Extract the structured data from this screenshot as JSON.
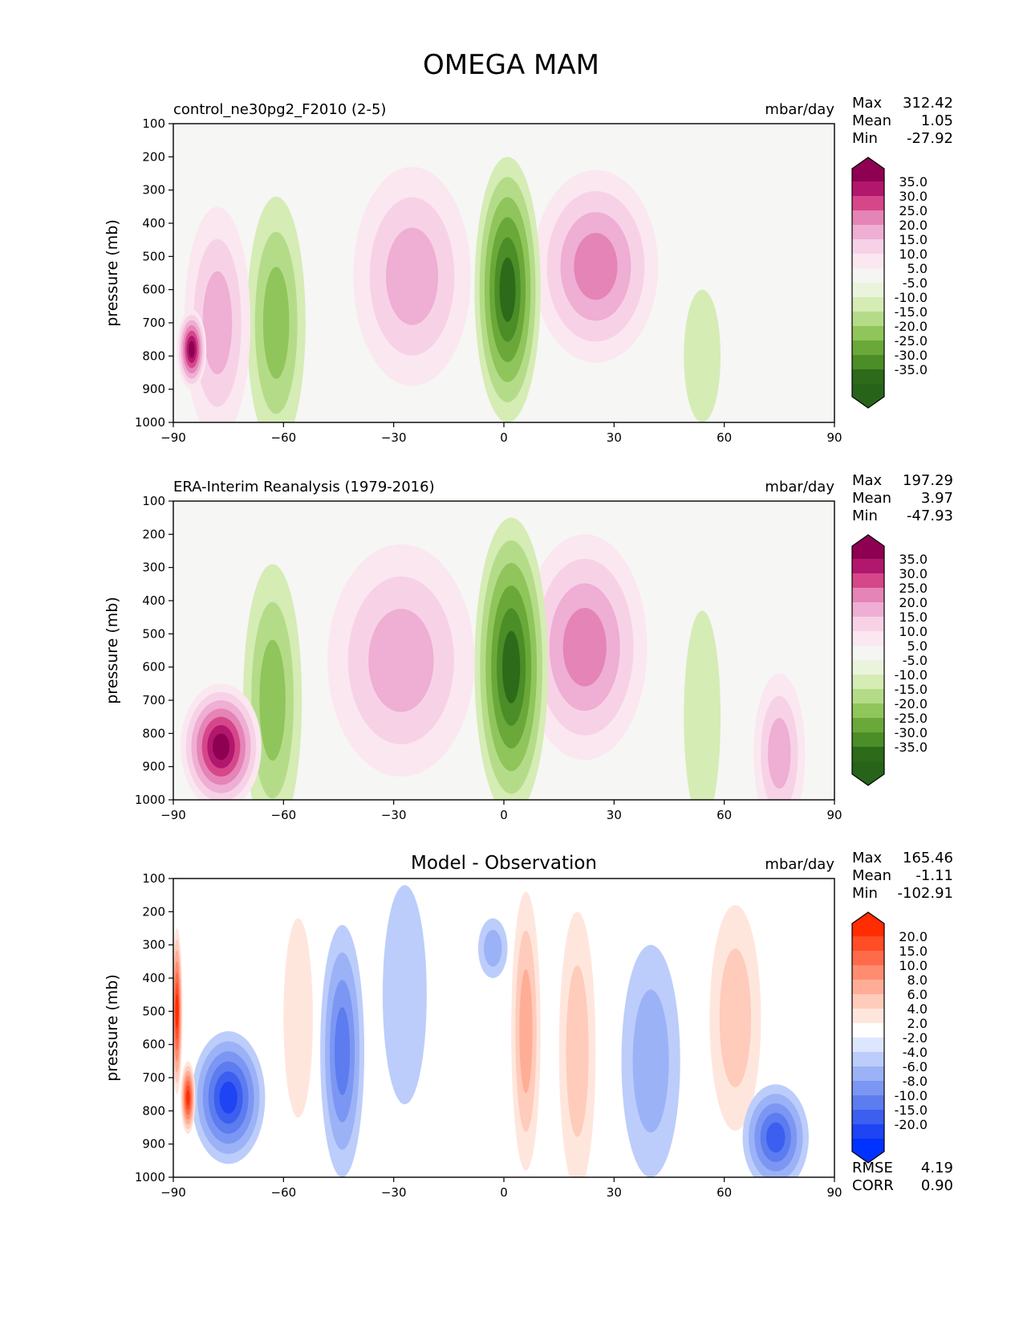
{
  "figure": {
    "title": "OMEGA MAM"
  },
  "chart_data": [
    {
      "type": "heatmap",
      "title": "control_ne30pg2_F2010 (2-5)",
      "units": "mbar/day",
      "ylabel": "pressure (mb)",
      "xlabel": "",
      "xlim": [
        -90,
        90
      ],
      "ylim": [
        1000,
        100
      ],
      "xticks": [
        "−90",
        "−60",
        "−30",
        "0",
        "30",
        "60",
        "90"
      ],
      "yticks": [
        "100",
        "200",
        "300",
        "400",
        "500",
        "600",
        "700",
        "800",
        "900",
        "1000"
      ],
      "stats": [
        {
          "label": "Max",
          "value": "312.42"
        },
        {
          "label": "Mean",
          "value": "1.05"
        },
        {
          "label": "Min",
          "value": "-27.92"
        }
      ],
      "colorbar": {
        "labels": [
          "35.0",
          "30.0",
          "25.0",
          "20.0",
          "15.0",
          "10.0",
          "5.0",
          "-5.0",
          "-10.0",
          "-15.0",
          "-20.0",
          "-25.0",
          "-30.0",
          "-35.0"
        ],
        "colors": [
          "#8e0152",
          "#b2176e",
          "#d6478a",
          "#e584b6",
          "#efaed3",
          "#f7d2e7",
          "#fbe7f0",
          "#f5f5f3",
          "#eaf4dc",
          "#d5ecb5",
          "#b4dc88",
          "#8fc55b",
          "#6ba83a",
          "#4b8d26",
          "#2d6a19",
          "#276419"
        ]
      },
      "features": [
        {
          "kind": "blob",
          "lat": 25,
          "p": 530,
          "hw": 17,
          "top": 250,
          "bot": 820,
          "level": 4
        },
        {
          "kind": "blob",
          "lat": 1,
          "p": 600,
          "hw": 9,
          "top": 200,
          "bot": 870,
          "level": -6
        },
        {
          "kind": "blob",
          "lat": -25,
          "p": 560,
          "hw": 16,
          "top": 230,
          "bot": 860,
          "level": 3
        },
        {
          "kind": "blob",
          "lat": -62,
          "p": 700,
          "hw": 8,
          "top": 320,
          "bot": 990,
          "level": -3
        },
        {
          "kind": "blob",
          "lat": -78,
          "p": 700,
          "hw": 9,
          "top": 350,
          "bot": 860,
          "level": 3
        },
        {
          "kind": "blob",
          "lat": -85,
          "p": 780,
          "hw": 4,
          "top": 660,
          "bot": 870,
          "level": 7
        },
        {
          "kind": "blob",
          "lat": 54,
          "p": 800,
          "hw": 5,
          "top": 620,
          "bot": 1000,
          "level": -1
        }
      ]
    },
    {
      "type": "heatmap",
      "title": "ERA-Interim Reanalysis (1979-2016)",
      "units": "mbar/day",
      "ylabel": "pressure (mb)",
      "xlabel": "",
      "xlim": [
        -90,
        90
      ],
      "ylim": [
        1000,
        100
      ],
      "xticks": [
        "−90",
        "−60",
        "−30",
        "0",
        "30",
        "60",
        "90"
      ],
      "yticks": [
        "100",
        "200",
        "300",
        "400",
        "500",
        "600",
        "700",
        "800",
        "900",
        "1000"
      ],
      "stats": [
        {
          "label": "Max",
          "value": "197.29"
        },
        {
          "label": "Mean",
          "value": "3.97"
        },
        {
          "label": "Min",
          "value": "-47.93"
        }
      ],
      "colorbar": {
        "labels": [
          "35.0",
          "30.0",
          "25.0",
          "20.0",
          "15.0",
          "10.0",
          "5.0",
          "-5.0",
          "-10.0",
          "-15.0",
          "-20.0",
          "-25.0",
          "-30.0",
          "-35.0"
        ],
        "colors": [
          "#8e0152",
          "#b2176e",
          "#d6478a",
          "#e584b6",
          "#efaed3",
          "#f7d2e7",
          "#fbe7f0",
          "#f5f5f3",
          "#eaf4dc",
          "#d5ecb5",
          "#b4dc88",
          "#8fc55b",
          "#6ba83a",
          "#4b8d26",
          "#2d6a19",
          "#276419"
        ]
      },
      "features": [
        {
          "kind": "blob",
          "lat": 22,
          "p": 540,
          "hw": 17,
          "top": 240,
          "bot": 880,
          "level": 4
        },
        {
          "kind": "blob",
          "lat": 2,
          "p": 600,
          "hw": 10,
          "top": 150,
          "bot": 920,
          "level": -6
        },
        {
          "kind": "blob",
          "lat": -28,
          "p": 580,
          "hw": 20,
          "top": 230,
          "bot": 920,
          "level": 3
        },
        {
          "kind": "blob",
          "lat": -63,
          "p": 700,
          "hw": 8,
          "top": 290,
          "bot": 1000,
          "level": -3
        },
        {
          "kind": "blob",
          "lat": -77,
          "p": 840,
          "hw": 11,
          "top": 650,
          "bot": 1000,
          "level": 7
        },
        {
          "kind": "blob",
          "lat": 54,
          "p": 750,
          "hw": 5,
          "top": 430,
          "bot": 1000,
          "level": -1
        },
        {
          "kind": "blob",
          "lat": 75,
          "p": 860,
          "hw": 7,
          "top": 620,
          "bot": 1000,
          "level": 3
        }
      ]
    },
    {
      "type": "heatmap",
      "title": "Model - Observation",
      "units": "mbar/day",
      "ylabel": "pressure (mb)",
      "xlabel": "",
      "xlim": [
        -90,
        90
      ],
      "ylim": [
        1000,
        100
      ],
      "xticks": [
        "−90",
        "−60",
        "−30",
        "0",
        "30",
        "60",
        "90"
      ],
      "yticks": [
        "100",
        "200",
        "300",
        "400",
        "500",
        "600",
        "700",
        "800",
        "900",
        "1000"
      ],
      "stats": [
        {
          "label": "Max",
          "value": "165.46"
        },
        {
          "label": "Mean",
          "value": "-1.11"
        },
        {
          "label": "Min",
          "value": "-102.91"
        }
      ],
      "extra_stats": [
        {
          "label": "RMSE",
          "value": "4.19"
        },
        {
          "label": "CORR",
          "value": "0.90"
        }
      ],
      "colorbar": {
        "labels": [
          "20.0",
          "15.0",
          "10.0",
          "8.0",
          "6.0",
          "4.0",
          "2.0",
          "-2.0",
          "-4.0",
          "-6.0",
          "-8.0",
          "-10.0",
          "-15.0",
          "-20.0"
        ],
        "colors": [
          "#ff2d00",
          "#ff4d26",
          "#ff6b4a",
          "#ff8c6f",
          "#ffad96",
          "#ffcbbb",
          "#ffe6dd",
          "#ffffff",
          "#dde6ff",
          "#bccdfb",
          "#9cb2f7",
          "#7c97f3",
          "#5c7cef",
          "#3c5ff0",
          "#1e44f3",
          "#0033ff"
        ]
      },
      "features": [
        {
          "kind": "blob",
          "lat": -44,
          "p": 620,
          "hw": 6,
          "top": 260,
          "bot": 1000,
          "level": -4
        },
        {
          "kind": "blob",
          "lat": -27,
          "p": 450,
          "hw": 6,
          "top": 260,
          "bot": 780,
          "level": -1
        },
        {
          "kind": "blob",
          "lat": 6,
          "p": 560,
          "hw": 4,
          "top": 140,
          "bot": 950,
          "level": 3
        },
        {
          "kind": "blob",
          "lat": -3,
          "p": 310,
          "hw": 4,
          "top": 220,
          "bot": 380,
          "level": -2
        },
        {
          "kind": "blob",
          "lat": 20,
          "p": 620,
          "hw": 5,
          "top": 200,
          "bot": 1000,
          "level": 2
        },
        {
          "kind": "blob",
          "lat": 40,
          "p": 650,
          "hw": 8,
          "top": 380,
          "bot": 1000,
          "level": -2
        },
        {
          "kind": "blob",
          "lat": 63,
          "p": 520,
          "hw": 7,
          "top": 260,
          "bot": 860,
          "level": 2
        },
        {
          "kind": "blob",
          "lat": 74,
          "p": 880,
          "hw": 9,
          "top": 720,
          "bot": 1000,
          "level": -5
        },
        {
          "kind": "blob",
          "lat": -56,
          "p": 520,
          "hw": 4,
          "top": 280,
          "bot": 820,
          "level": 1
        },
        {
          "kind": "blob",
          "lat": -75,
          "p": 760,
          "hw": 10,
          "top": 560,
          "bot": 860,
          "level": -6
        },
        {
          "kind": "blob",
          "lat": -89,
          "p": 500,
          "hw": 1.5,
          "top": 250,
          "bot": 650,
          "level": 7
        },
        {
          "kind": "blob",
          "lat": -86,
          "p": 760,
          "hw": 2,
          "top": 650,
          "bot": 870,
          "level": 7
        }
      ]
    }
  ]
}
